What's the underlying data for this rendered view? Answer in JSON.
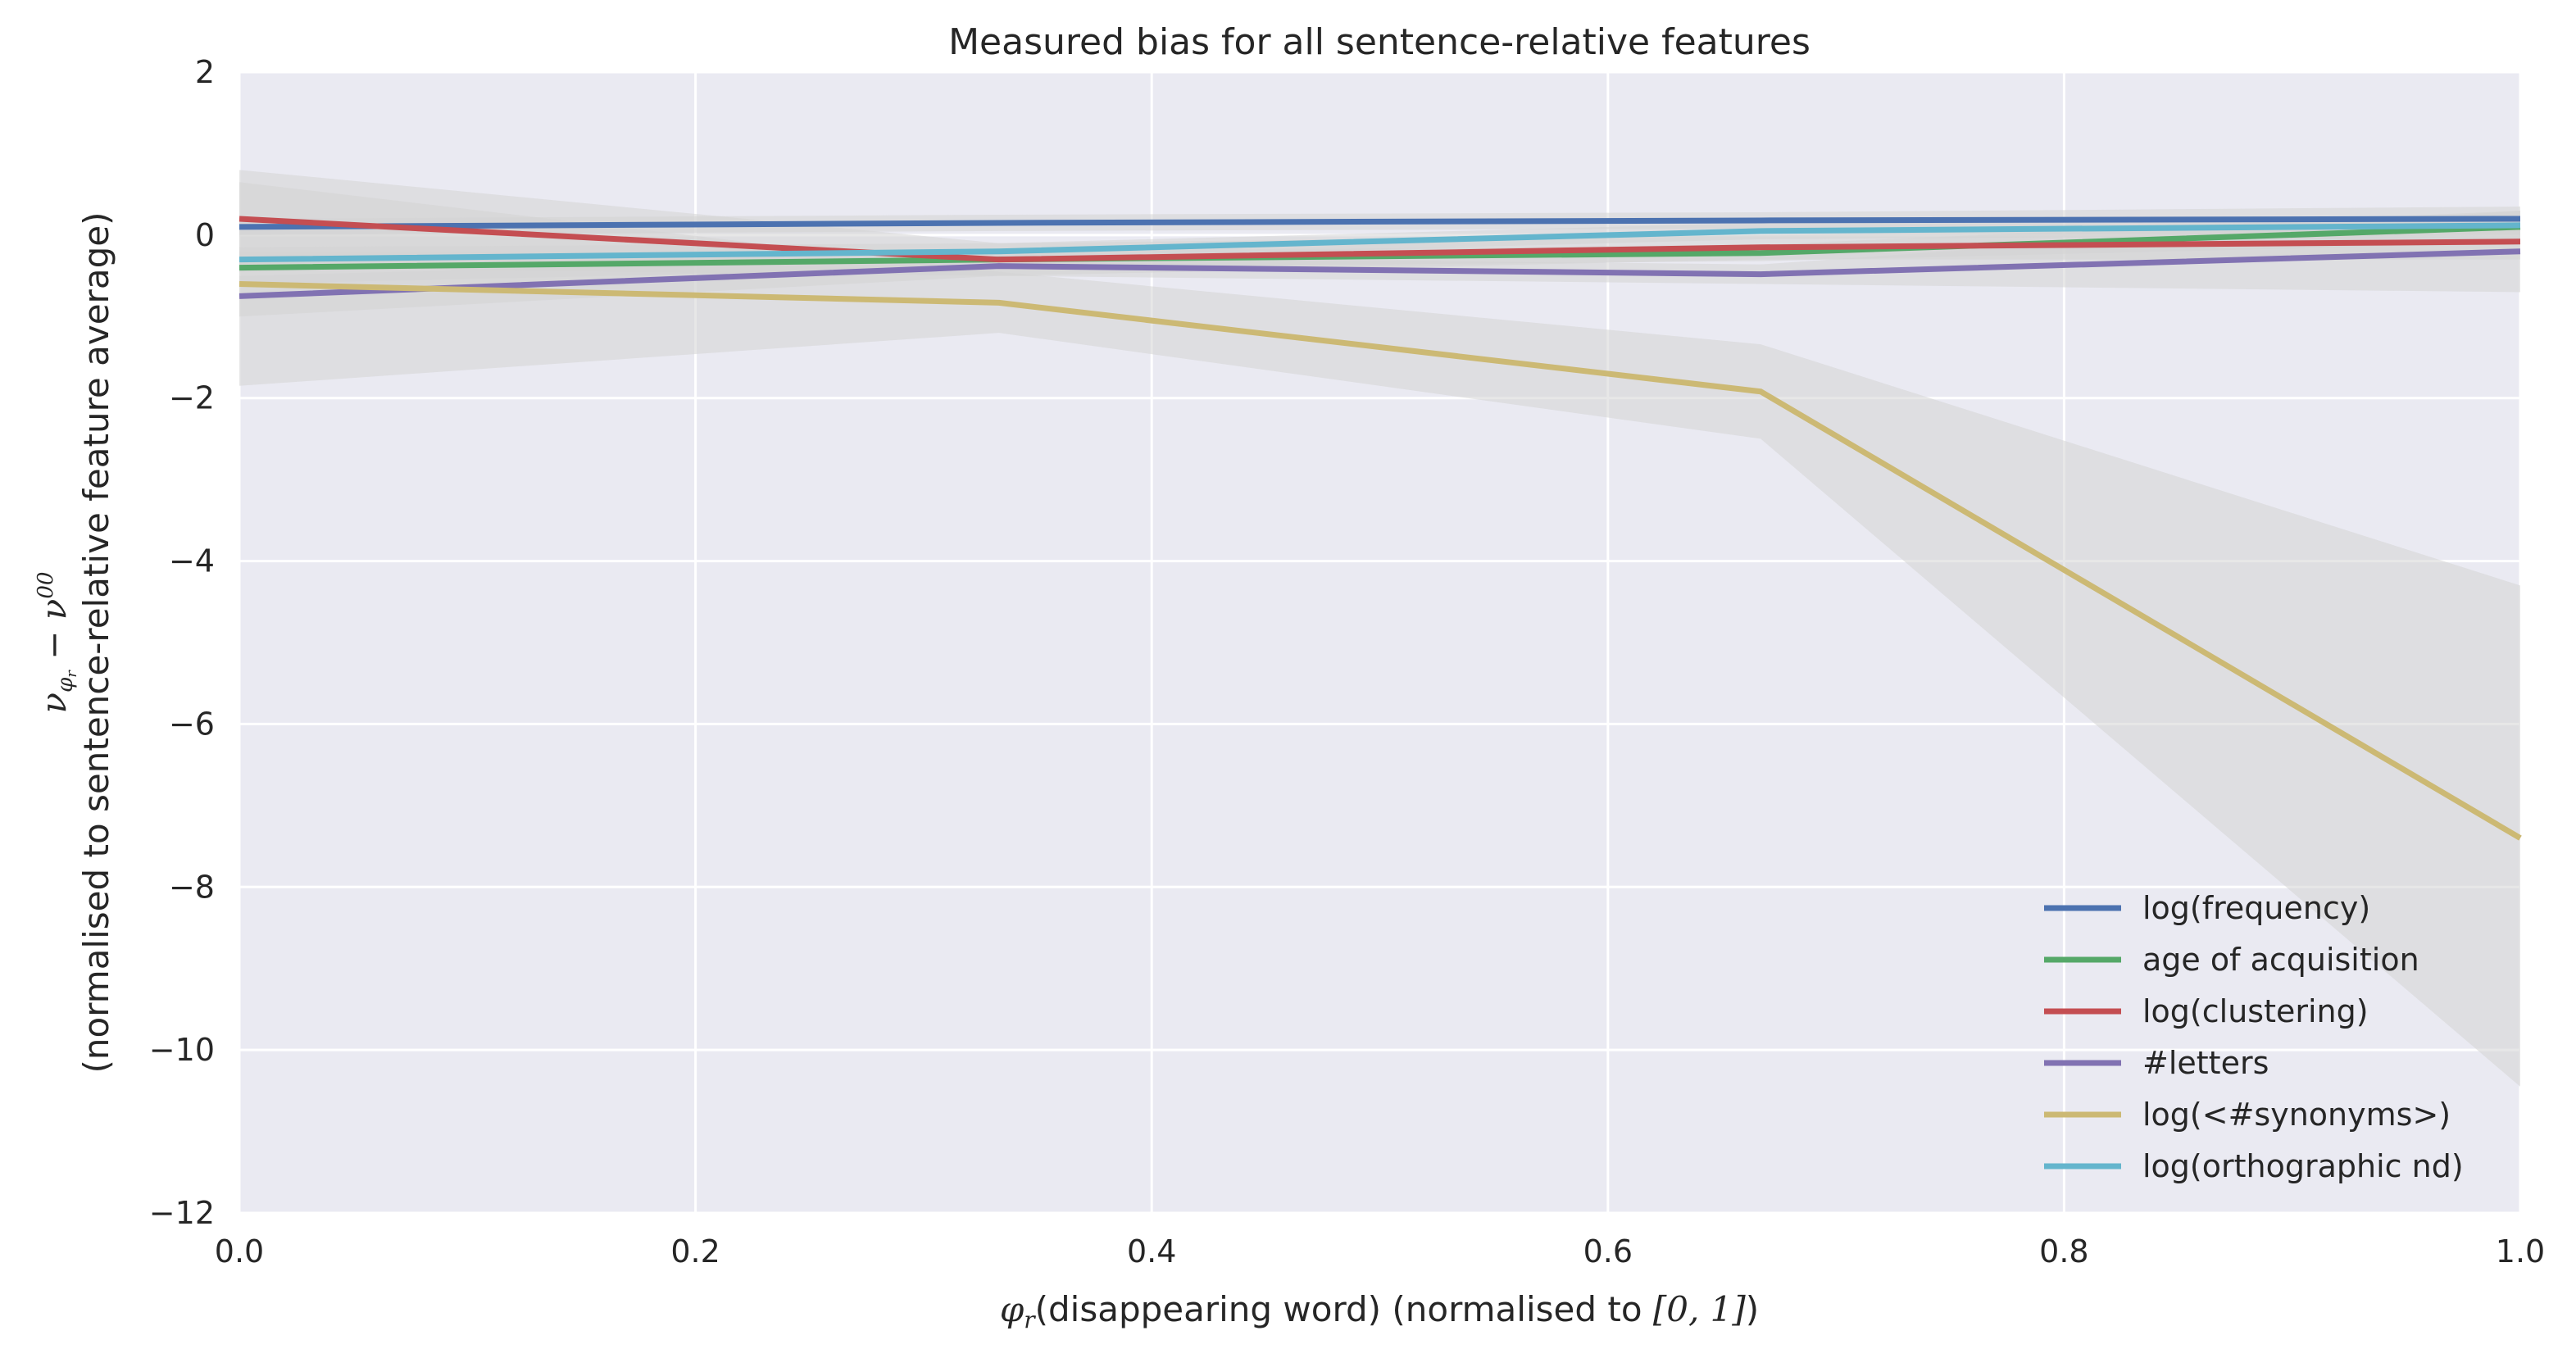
{
  "chart_data": {
    "type": "line",
    "title": "Measured bias for all sentence-relative features",
    "xlabel": {
      "sym": "φ",
      "sub": "r",
      "paren_text": "(disappearing word)",
      "suffix": " (normalised to ",
      "interval": "[0, 1]",
      "close": ")"
    },
    "ylabel": {
      "line1": {
        "nu": "ν",
        "sub_phi": "φ",
        "sub_r": "r",
        "minus": " − ",
        "sup": "00"
      },
      "line2": "(normalised to sentence-relative feature average)"
    },
    "xlim": [
      0.0,
      1.0
    ],
    "ylim": [
      -12,
      2
    ],
    "x_ticks": [
      0.0,
      0.2,
      0.4,
      0.6,
      0.8,
      1.0
    ],
    "x_tick_labels": [
      "0.0",
      "0.2",
      "0.4",
      "0.6",
      "0.8",
      "1.0"
    ],
    "y_ticks": [
      2,
      0,
      -2,
      -4,
      -6,
      -8,
      -10,
      -12
    ],
    "y_tick_labels": [
      "2",
      "0",
      "−2",
      "−4",
      "−6",
      "−8",
      "−10",
      "−12"
    ],
    "grid": true,
    "legend_position": "lower-right",
    "colors": {
      "plot_background": "#eaeaf2",
      "grid": "#ffffff",
      "band": "#d4d4d4"
    },
    "series": [
      {
        "name": "log(frequency)",
        "color": "#4c72b0",
        "x": [
          0.0,
          0.333,
          0.667,
          1.0
        ],
        "y": [
          0.1,
          0.15,
          0.18,
          0.2
        ],
        "lower": [
          0.0,
          0.05,
          0.08,
          0.05
        ],
        "upper": [
          0.2,
          0.25,
          0.28,
          0.35
        ]
      },
      {
        "name": "age of acquisition",
        "color": "#55a868",
        "x": [
          0.0,
          0.333,
          0.667,
          1.0
        ],
        "y": [
          -0.4,
          -0.3,
          -0.22,
          0.1
        ],
        "lower": [
          -0.6,
          -0.4,
          -0.32,
          -0.1
        ],
        "upper": [
          -0.2,
          -0.2,
          -0.12,
          0.3
        ]
      },
      {
        "name": "log(clustering)",
        "color": "#c44e52",
        "x": [
          0.0,
          0.333,
          0.667,
          1.0
        ],
        "y": [
          0.2,
          -0.3,
          -0.15,
          -0.08
        ],
        "lower": [
          -0.4,
          -0.5,
          -0.3,
          -0.3
        ],
        "upper": [
          0.8,
          -0.1,
          0.0,
          0.15
        ]
      },
      {
        "name": "#letters",
        "color": "#8172b2",
        "x": [
          0.0,
          0.333,
          0.667,
          1.0
        ],
        "y": [
          -0.75,
          -0.38,
          -0.48,
          -0.2
        ],
        "lower": [
          -1.0,
          -0.5,
          -0.6,
          -0.7
        ],
        "upper": [
          -0.5,
          -0.26,
          -0.36,
          0.3
        ]
      },
      {
        "name": "log(<#synonyms>)",
        "color": "#ccb974",
        "x": [
          0.0,
          0.333,
          0.667,
          1.0
        ],
        "y": [
          -0.6,
          -0.83,
          -1.92,
          -7.4
        ],
        "lower": [
          -1.85,
          -1.2,
          -2.5,
          -10.45
        ],
        "upper": [
          0.65,
          -0.45,
          -1.34,
          -4.3
        ]
      },
      {
        "name": "log(orthographic nd)",
        "color": "#64b5cd",
        "x": [
          0.0,
          0.333,
          0.667,
          1.0
        ],
        "y": [
          -0.3,
          -0.2,
          0.05,
          0.12
        ],
        "lower": [
          -0.45,
          -0.3,
          -0.05,
          0.0
        ],
        "upper": [
          -0.15,
          -0.1,
          0.15,
          0.25
        ]
      }
    ]
  }
}
